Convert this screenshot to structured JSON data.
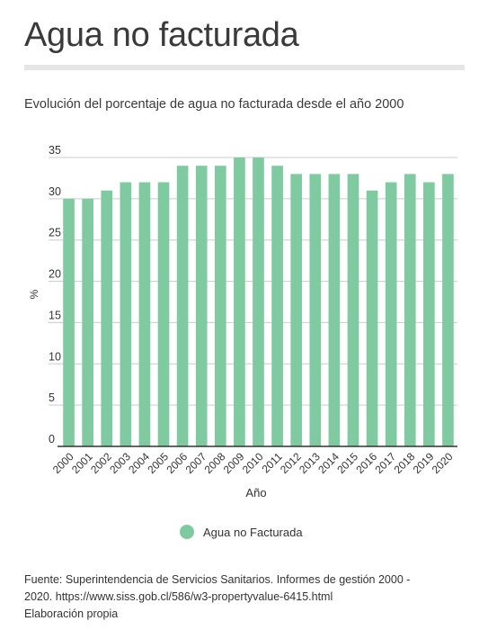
{
  "header": {
    "title": "Agua no facturada",
    "subtitle": "Evolución del porcentaje de agua no facturada desde el año 2000"
  },
  "chart_data": {
    "type": "bar",
    "categories": [
      "2000",
      "2001",
      "2002",
      "2003",
      "2004",
      "2005",
      "2006",
      "2007",
      "2008",
      "2009",
      "2010",
      "2011",
      "2012",
      "2013",
      "2014",
      "2015",
      "2016",
      "2017",
      "2018",
      "2019",
      "2020"
    ],
    "series": [
      {
        "name": "Agua no Facturada",
        "values": [
          30,
          30,
          31,
          32,
          32,
          32,
          34,
          34,
          34,
          35,
          35,
          34,
          33,
          33,
          33,
          33,
          31,
          32,
          33,
          32,
          33
        ]
      }
    ],
    "xlabel": "Año",
    "ylabel": "%",
    "ylim": [
      0,
      35
    ],
    "yticks": [
      0,
      5,
      10,
      15,
      20,
      25,
      30,
      35
    ],
    "grid": true,
    "legend": "bottom",
    "colors": {
      "bar": "#7fcaa1",
      "grid": "#cccccc",
      "axis": "#333333"
    }
  },
  "legend": {
    "label": "Agua no Facturada"
  },
  "footer": {
    "line1": "Fuente: Superintendencia de Servicios Sanitarios. Informes de gestión 2000 -",
    "line2": "2020. https://www.siss.gob.cl/586/w3-propertyvalue-6415.html",
    "line3": "Elaboración propia"
  }
}
